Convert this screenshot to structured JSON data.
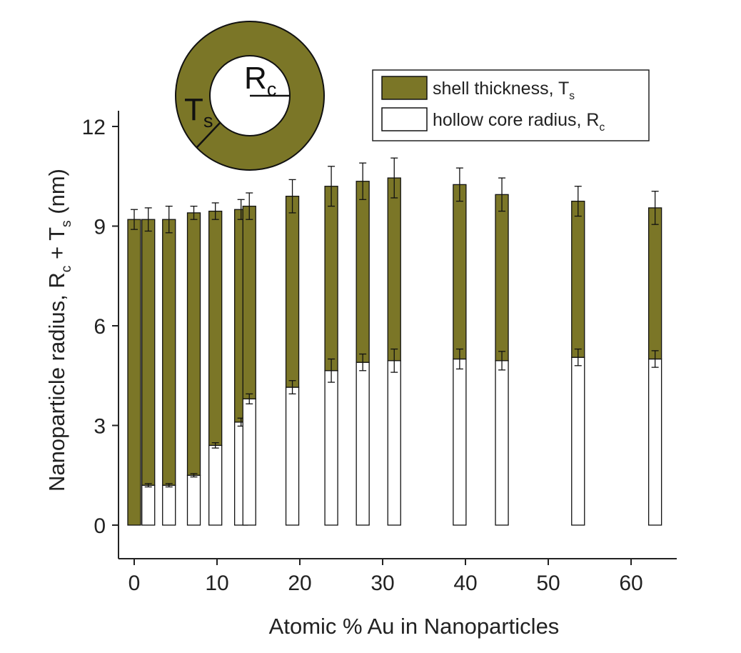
{
  "chart_data": {
    "type": "bar",
    "stacked": true,
    "xlabel": "Atomic % Au in Nanoparticles",
    "ylabel_parts": [
      "Nanoparticle radius, R",
      "c",
      " + T",
      "s",
      " (nm)"
    ],
    "xlim": [
      -2,
      66
    ],
    "ylim": [
      -1,
      12.5
    ],
    "xticks": [
      0,
      10,
      20,
      30,
      40,
      50,
      60
    ],
    "yticks": [
      0,
      3,
      6,
      9,
      12
    ],
    "grid": false,
    "legend_placement": "top-right",
    "colors": {
      "shell": "#7b7627",
      "core": "#ffffff",
      "edge": "#111111"
    },
    "x": [
      0,
      1.7,
      4.2,
      7.2,
      9.8,
      12.9,
      13.9,
      19.1,
      23.8,
      27.6,
      31.4,
      39.3,
      44.4,
      53.6,
      62.9
    ],
    "series": [
      {
        "name_parts": [
          "hollow core radius, R",
          "c"
        ],
        "values": [
          0,
          1.2,
          1.2,
          1.5,
          2.4,
          3.1,
          3.8,
          4.15,
          4.65,
          4.9,
          4.95,
          5.0,
          4.95,
          5.05,
          5.0
        ],
        "errors": [
          0,
          0.05,
          0.05,
          0.05,
          0.08,
          0.12,
          0.15,
          0.2,
          0.35,
          0.25,
          0.35,
          0.3,
          0.28,
          0.25,
          0.25
        ]
      },
      {
        "name_parts": [
          "shell thickness, T",
          "s"
        ],
        "values": [
          9.2,
          8.0,
          8.0,
          7.9,
          7.05,
          6.4,
          5.8,
          5.75,
          5.55,
          5.45,
          5.5,
          5.25,
          5.0,
          4.7,
          4.55
        ],
        "errors": [
          0.3,
          0.35,
          0.4,
          0.2,
          0.25,
          0.3,
          0.4,
          0.5,
          0.6,
          0.55,
          0.6,
          0.5,
          0.5,
          0.45,
          0.5
        ]
      }
    ],
    "inset": {
      "core_label": [
        "R",
        "c"
      ],
      "shell_label": [
        "T",
        "s"
      ]
    }
  }
}
